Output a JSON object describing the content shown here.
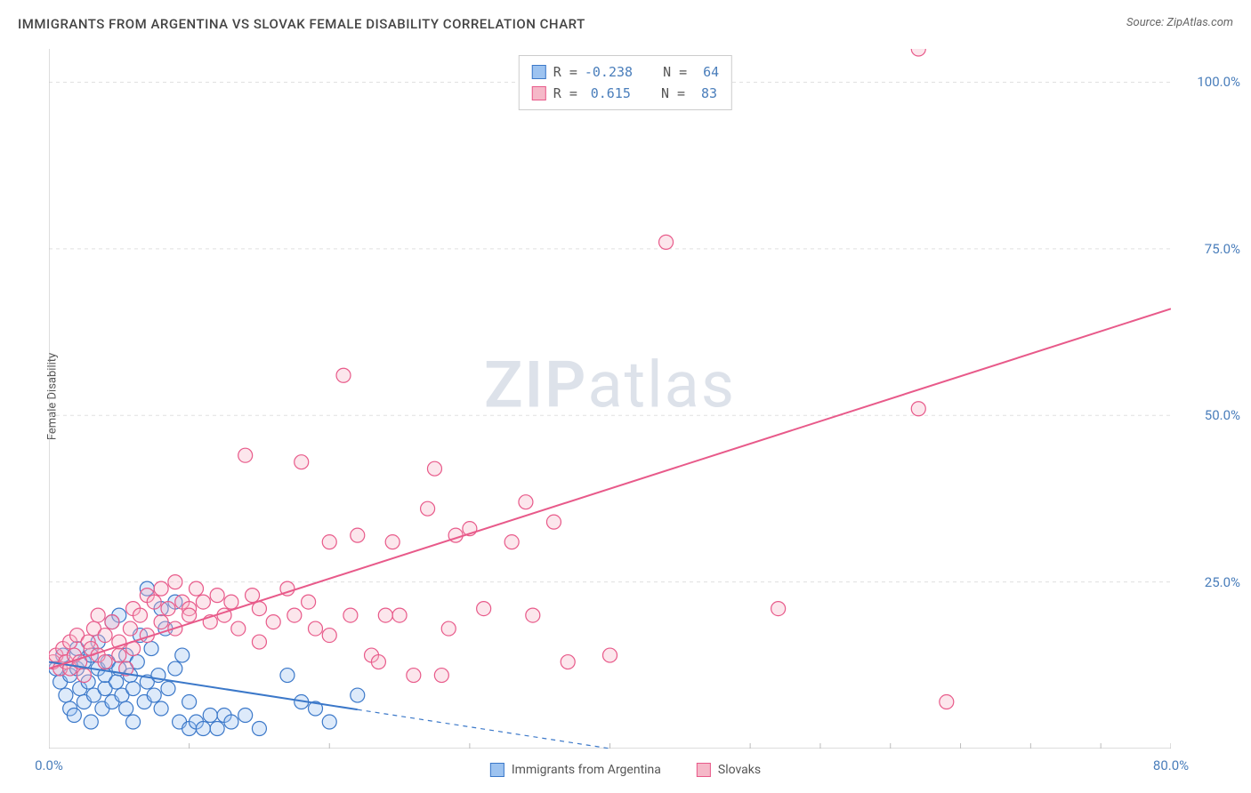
{
  "title": "IMMIGRANTS FROM ARGENTINA VS SLOVAK FEMALE DISABILITY CORRELATION CHART",
  "source": "Source: ZipAtlas.com",
  "ylabel": "Female Disability",
  "watermark_bold": "ZIP",
  "watermark_light": "atlas",
  "chart": {
    "type": "scatter",
    "xlim": [
      0,
      80
    ],
    "ylim": [
      0,
      105
    ],
    "x_ticks": [
      0,
      10,
      20,
      30,
      40,
      50,
      55,
      60,
      65,
      70,
      75,
      80
    ],
    "x_tick_labels": {
      "0": "0.0%",
      "80": "80.0%"
    },
    "y_ticks": [
      25,
      50,
      75,
      100
    ],
    "y_tick_labels": {
      "25": "25.0%",
      "50": "50.0%",
      "75": "75.0%",
      "100": "100.0%"
    },
    "background_color": "#ffffff",
    "grid_color": "#e0e0e0",
    "axis_color": "#bbbbbb",
    "tick_label_color": "#4a7ebb",
    "marker_radius": 8,
    "marker_stroke_width": 1.2,
    "marker_fill_opacity": 0.35,
    "trend_line_width": 2,
    "series": [
      {
        "name": "Immigrants from Argentina",
        "color_fill": "#9dc3f0",
        "color_stroke": "#3b78c9",
        "R": -0.238,
        "N": 64,
        "trend": {
          "x1": 0,
          "y1": 13,
          "x2": 40,
          "y2": 0,
          "dash_after_x": 22
        },
        "points": [
          [
            0.5,
            12
          ],
          [
            0.8,
            10
          ],
          [
            1,
            14
          ],
          [
            1.2,
            8
          ],
          [
            1.5,
            11
          ],
          [
            1.5,
            6
          ],
          [
            1.8,
            5
          ],
          [
            2,
            12
          ],
          [
            2,
            15
          ],
          [
            2.2,
            9
          ],
          [
            2.5,
            13
          ],
          [
            2.5,
            7
          ],
          [
            2.8,
            10
          ],
          [
            3,
            14
          ],
          [
            3,
            4
          ],
          [
            3.2,
            8
          ],
          [
            3.5,
            12
          ],
          [
            3.5,
            16
          ],
          [
            3.8,
            6
          ],
          [
            4,
            9
          ],
          [
            4,
            11
          ],
          [
            4.2,
            13
          ],
          [
            4.5,
            7
          ],
          [
            4.5,
            19
          ],
          [
            4.8,
            10
          ],
          [
            5,
            12
          ],
          [
            5,
            20
          ],
          [
            5.2,
            8
          ],
          [
            5.5,
            6
          ],
          [
            5.5,
            14
          ],
          [
            5.8,
            11
          ],
          [
            6,
            9
          ],
          [
            6,
            4
          ],
          [
            6.3,
            13
          ],
          [
            6.5,
            17
          ],
          [
            6.8,
            7
          ],
          [
            7,
            10
          ],
          [
            7,
            24
          ],
          [
            7.3,
            15
          ],
          [
            7.5,
            8
          ],
          [
            7.8,
            11
          ],
          [
            8,
            21
          ],
          [
            8,
            6
          ],
          [
            8.3,
            18
          ],
          [
            8.5,
            9
          ],
          [
            9,
            12
          ],
          [
            9,
            22
          ],
          [
            9.3,
            4
          ],
          [
            9.5,
            14
          ],
          [
            10,
            7
          ],
          [
            10,
            3
          ],
          [
            10.5,
            4
          ],
          [
            11,
            3
          ],
          [
            11.5,
            5
          ],
          [
            12,
            3
          ],
          [
            12.5,
            5
          ],
          [
            13,
            4
          ],
          [
            14,
            5
          ],
          [
            15,
            3
          ],
          [
            17,
            11
          ],
          [
            18,
            7
          ],
          [
            19,
            6
          ],
          [
            20,
            4
          ],
          [
            22,
            8
          ]
        ]
      },
      {
        "name": "Slovaks",
        "color_fill": "#f5b8c8",
        "color_stroke": "#e85a8a",
        "R": 0.615,
        "N": 83,
        "trend": {
          "x1": 0,
          "y1": 12,
          "x2": 80,
          "y2": 66,
          "dash_after_x": 80
        },
        "points": [
          [
            0.3,
            13
          ],
          [
            0.5,
            14
          ],
          [
            0.8,
            12
          ],
          [
            1,
            15
          ],
          [
            1.2,
            13
          ],
          [
            1.5,
            16
          ],
          [
            1.5,
            12
          ],
          [
            1.8,
            14
          ],
          [
            2,
            17
          ],
          [
            2.2,
            13
          ],
          [
            2.5,
            11
          ],
          [
            2.8,
            16
          ],
          [
            3,
            15
          ],
          [
            3.2,
            18
          ],
          [
            3.5,
            14
          ],
          [
            3.5,
            20
          ],
          [
            4,
            13
          ],
          [
            4,
            17
          ],
          [
            4.5,
            19
          ],
          [
            5,
            16
          ],
          [
            5,
            14
          ],
          [
            5.5,
            12
          ],
          [
            5.8,
            18
          ],
          [
            6,
            21
          ],
          [
            6,
            15
          ],
          [
            6.5,
            20
          ],
          [
            7,
            23
          ],
          [
            7,
            17
          ],
          [
            7.5,
            22
          ],
          [
            8,
            19
          ],
          [
            8,
            24
          ],
          [
            8.5,
            21
          ],
          [
            9,
            25
          ],
          [
            9,
            18
          ],
          [
            9.5,
            22
          ],
          [
            10,
            21
          ],
          [
            10,
            20
          ],
          [
            10.5,
            24
          ],
          [
            11,
            22
          ],
          [
            11.5,
            19
          ],
          [
            12,
            23
          ],
          [
            12.5,
            20
          ],
          [
            13,
            22
          ],
          [
            13.5,
            18
          ],
          [
            14,
            44
          ],
          [
            14.5,
            23
          ],
          [
            15,
            21
          ],
          [
            15,
            16
          ],
          [
            16,
            19
          ],
          [
            17,
            24
          ],
          [
            17.5,
            20
          ],
          [
            18,
            43
          ],
          [
            18.5,
            22
          ],
          [
            19,
            18
          ],
          [
            20,
            31
          ],
          [
            20,
            17
          ],
          [
            21,
            56
          ],
          [
            21.5,
            20
          ],
          [
            22,
            32
          ],
          [
            23,
            14
          ],
          [
            23.5,
            13
          ],
          [
            24,
            20
          ],
          [
            24.5,
            31
          ],
          [
            25,
            20
          ],
          [
            26,
            11
          ],
          [
            27,
            36
          ],
          [
            27.5,
            42
          ],
          [
            28,
            11
          ],
          [
            28.5,
            18
          ],
          [
            29,
            32
          ],
          [
            30,
            33
          ],
          [
            31,
            21
          ],
          [
            33,
            31
          ],
          [
            34,
            37
          ],
          [
            34.5,
            20
          ],
          [
            36,
            34
          ],
          [
            37,
            13
          ],
          [
            40,
            14
          ],
          [
            44,
            76
          ],
          [
            52,
            21
          ],
          [
            62,
            51
          ],
          [
            62,
            105
          ],
          [
            64,
            7
          ]
        ]
      }
    ]
  },
  "legend": {
    "items": [
      {
        "label": "Immigrants from Argentina",
        "fill": "#9dc3f0",
        "stroke": "#3b78c9"
      },
      {
        "label": "Slovaks",
        "fill": "#f5b8c8",
        "stroke": "#e85a8a"
      }
    ]
  }
}
